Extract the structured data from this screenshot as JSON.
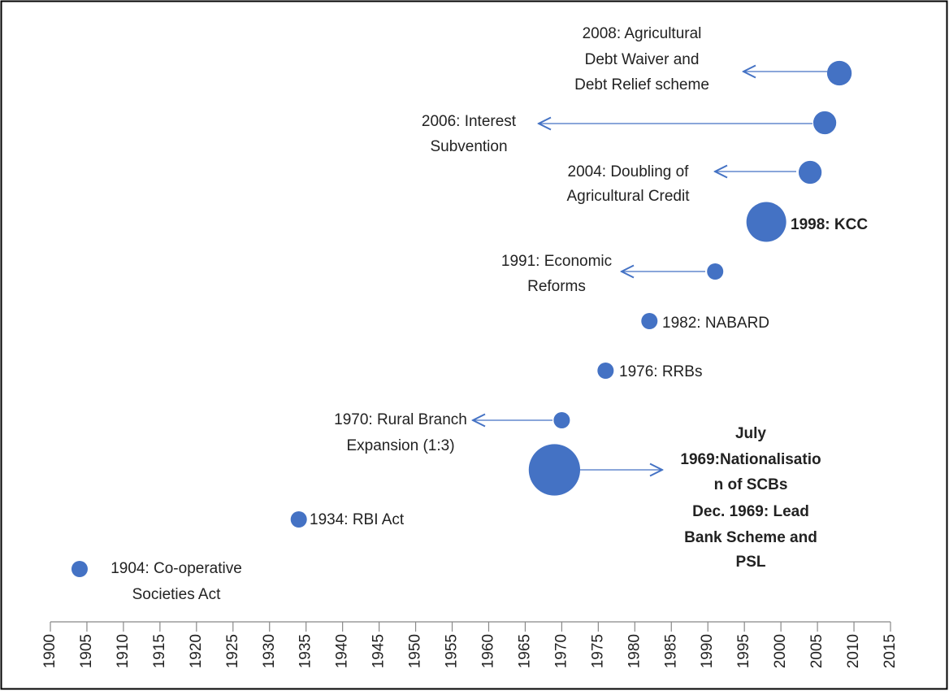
{
  "chart_data": {
    "type": "bubble",
    "x": [
      1904,
      1934,
      1969,
      1970,
      1976,
      1982,
      1991,
      1998,
      2004,
      2006,
      2008
    ],
    "values": [
      1,
      2,
      3,
      4,
      5,
      6,
      7,
      8,
      9,
      10,
      11
    ],
    "sizes": [
      1,
      1,
      10,
      1,
      1,
      1,
      1,
      6,
      2,
      2,
      2.3
    ],
    "labels": [
      [
        "1904: Co-operative",
        "Societies Act"
      ],
      [
        "1934: RBI Act"
      ],
      [
        "July",
        "1969:Nationalisatio",
        "n of SCBs",
        "Dec. 1969: Lead",
        "Bank Scheme and",
        "PSL"
      ],
      [
        "1970: Rural Branch",
        "Expansion (1:3)"
      ],
      [
        "1976: RRBs"
      ],
      [
        "1982: NABARD"
      ],
      [
        "1991: Economic",
        "Reforms"
      ],
      [
        "1998: KCC"
      ],
      [
        "2004: Doubling of",
        "Agricultural Credit"
      ],
      [
        "2006: Interest",
        "Subvention"
      ],
      [
        "2008: Agricultural",
        "Debt Waiver and",
        "Debt Relief scheme"
      ]
    ],
    "bold": [
      false,
      false,
      true,
      false,
      false,
      false,
      false,
      true,
      false,
      false,
      false
    ],
    "color": "#4472c4",
    "xlim": [
      1900,
      2015
    ],
    "xticks": [
      1900,
      1905,
      1910,
      1915,
      1920,
      1925,
      1930,
      1935,
      1940,
      1945,
      1950,
      1955,
      1960,
      1965,
      1970,
      1975,
      1980,
      1985,
      1990,
      1995,
      2000,
      2005,
      2010,
      2015
    ],
    "ylim": [
      0,
      12
    ],
    "grid": false
  }
}
